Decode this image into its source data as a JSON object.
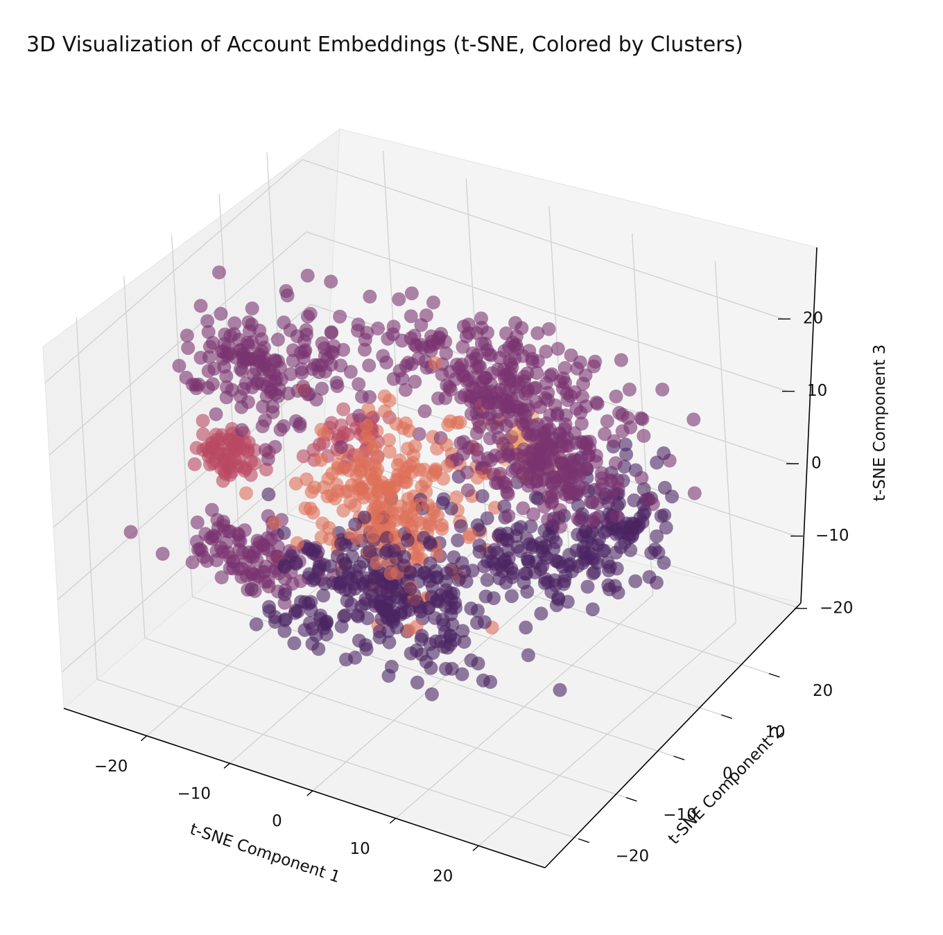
{
  "chart_data": {
    "type": "scatter",
    "projection": "3d",
    "title": "3D Visualization of Account Embeddings (t-SNE, Colored by Clusters)",
    "xlabel": "t-SNE Component 1",
    "ylabel": "t-SNE Component 2",
    "zlabel": "t-SNE Component 3",
    "xlim": [
      -30,
      28
    ],
    "ylim": [
      -27,
      27
    ],
    "zlim": [
      -25,
      25
    ],
    "xticks": [
      {
        "v": -20,
        "label": "−20"
      },
      {
        "v": -10,
        "label": "−10"
      },
      {
        "v": 0,
        "label": "0"
      },
      {
        "v": 10,
        "label": "10"
      },
      {
        "v": 20,
        "label": "20"
      }
    ],
    "yticks": [
      {
        "v": -20,
        "label": "−20"
      },
      {
        "v": -10,
        "label": "−10"
      },
      {
        "v": 0,
        "label": "0"
      },
      {
        "v": 10,
        "label": "10"
      },
      {
        "v": 20,
        "label": "20"
      }
    ],
    "zticks": [
      {
        "v": -20,
        "label": "−20"
      },
      {
        "v": -10,
        "label": "−10"
      },
      {
        "v": 0,
        "label": "0"
      },
      {
        "v": 10,
        "label": "10"
      },
      {
        "v": 20,
        "label": "20"
      }
    ],
    "grid": true,
    "colormap": "flare",
    "marker_alpha": 0.6,
    "cluster_colors": [
      "#4b2462",
      "#7a3370",
      "#b94a62",
      "#dd6f58",
      "#eca06a"
    ],
    "clusters": [
      {
        "id": 0,
        "color": "#4b2462",
        "blobs": [
          {
            "c": [
              12,
              3,
              -5
            ],
            "s": [
              5,
              4,
              3
            ],
            "n": 140
          },
          {
            "c": [
              -1,
              -6,
              -10
            ],
            "s": [
              6,
              4,
              3.5
            ],
            "n": 260
          },
          {
            "c": [
              18,
              9,
              -1
            ],
            "s": [
              2.5,
              3,
              3
            ],
            "n": 90
          },
          {
            "c": [
              -13,
              -5,
              -19
            ],
            "s": [
              3,
              2,
              1.5
            ],
            "n": 30
          }
        ]
      },
      {
        "id": 1,
        "color": "#7a3370",
        "blobs": [
          {
            "c": [
              -23,
              6,
              6
            ],
            "s": [
              4,
              4,
              3.5
            ],
            "n": 170
          },
          {
            "c": [
              -5,
              22,
              3
            ],
            "s": [
              8,
              3,
              3
            ],
            "n": 230
          },
          {
            "c": [
              11,
              5,
              6
            ],
            "s": [
              5,
              3,
              2
            ],
            "n": 200
          },
          {
            "c": [
              -20,
              -4,
              -13
            ],
            "s": [
              4,
              3,
              2
            ],
            "n": 110
          },
          {
            "c": [
              -2,
              15,
              4
            ],
            "s": [
              3,
              1.5,
              1
            ],
            "n": 30
          }
        ]
      },
      {
        "id": 2,
        "color": "#b94a62",
        "blobs": [
          {
            "c": [
              -26,
              2,
              -5
            ],
            "s": [
              1.6,
              2,
              1.2
            ],
            "n": 70
          },
          {
            "c": [
              -14,
              7,
              -1
            ],
            "s": [
              2,
              2,
              2
            ],
            "n": 40
          }
        ]
      },
      {
        "id": 3,
        "color": "#dd6f58",
        "blobs": [
          {
            "c": [
              -5,
              1,
              -3
            ],
            "s": [
              5,
              5,
              5
            ],
            "n": 220
          },
          {
            "c": [
              -10,
              4,
              -6
            ],
            "s": [
              3,
              3,
              3
            ],
            "n": 40
          }
        ]
      },
      {
        "id": 4,
        "color": "#eca06a",
        "blobs": [
          {
            "c": [
              0,
              20,
              -4
            ],
            "s": [
              2.5,
              1.5,
              1.5
            ],
            "n": 40
          }
        ]
      }
    ]
  }
}
